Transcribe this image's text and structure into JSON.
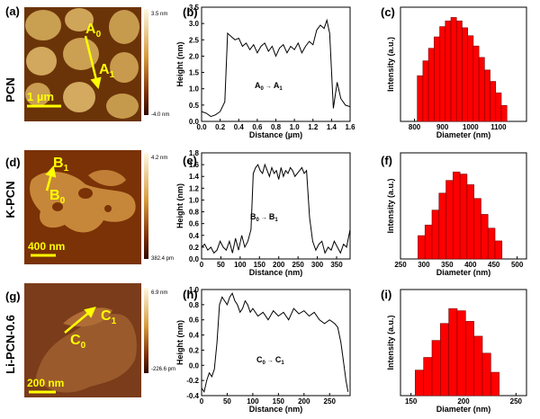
{
  "colors": {
    "bar": "#ff0000",
    "bar_edge": "#7a0000",
    "annotation": "#ffff00",
    "line": "#000000"
  },
  "rows": [
    {
      "row_label": "PCN",
      "afm": {
        "panel": "(a)",
        "scale_bar": "1 µm",
        "colorbar_max": "3.5 nm",
        "colorbar_min": "-4.0 nm",
        "start_base": "A",
        "start_sub": "0",
        "end_base": "A",
        "end_sub": "1"
      },
      "profile": {
        "panel": "(b)",
        "annotation": {
          "start_base": "A",
          "start_sub": "0",
          "arrow": "→",
          "end_base": "A",
          "end_sub": "1"
        }
      },
      "hist": {
        "panel": "(c)"
      }
    },
    {
      "row_label": "K-PCN",
      "afm": {
        "panel": "(d)",
        "scale_bar": "400 nm",
        "colorbar_max": "4.2 nm",
        "colorbar_min": "382.4 pm",
        "start_base": "B",
        "start_sub": "0",
        "end_base": "B",
        "end_sub": "1"
      },
      "profile": {
        "panel": "(e)",
        "annotation": {
          "start_base": "B",
          "start_sub": "0",
          "arrow": "→",
          "end_base": "B",
          "end_sub": "1"
        }
      },
      "hist": {
        "panel": "(f)"
      }
    },
    {
      "row_label": "Li-PCN-0.6",
      "afm": {
        "panel": "(g)",
        "scale_bar": "200 nm",
        "colorbar_max": "6.9 nm",
        "colorbar_min": "-226.6 pm",
        "start_base": "C",
        "start_sub": "0",
        "end_base": "C",
        "end_sub": "1"
      },
      "profile": {
        "panel": "(h)",
        "annotation": {
          "start_base": "C",
          "start_sub": "0",
          "arrow": "→",
          "end_base": "C",
          "end_sub": "1"
        }
      },
      "hist": {
        "panel": "(i)"
      }
    }
  ],
  "chart_data": [
    {
      "id": "b",
      "type": "line",
      "xlabel": "Distance (µm)",
      "ylabel": "Height (nm)",
      "xlim": [
        0,
        1.6
      ],
      "ylim": [
        0,
        3.5
      ],
      "xticks": [
        "0.0",
        "0.2",
        "0.4",
        "0.6",
        "0.8",
        "1.0",
        "1.2",
        "1.4",
        "1.6"
      ],
      "yticks": [
        "0.0",
        "0.5",
        "1.0",
        "1.5",
        "2.0",
        "2.5",
        "3.0",
        "3.5"
      ],
      "x": [
        0,
        0.05,
        0.1,
        0.15,
        0.2,
        0.25,
        0.28,
        0.32,
        0.36,
        0.4,
        0.44,
        0.48,
        0.52,
        0.56,
        0.6,
        0.64,
        0.68,
        0.72,
        0.76,
        0.8,
        0.84,
        0.88,
        0.92,
        0.96,
        1.0,
        1.04,
        1.08,
        1.12,
        1.16,
        1.2,
        1.24,
        1.28,
        1.32,
        1.35,
        1.38,
        1.42,
        1.46,
        1.5,
        1.55,
        1.6
      ],
      "y": [
        0.3,
        0.25,
        0.15,
        0.2,
        0.3,
        0.6,
        2.7,
        2.6,
        2.5,
        2.55,
        2.3,
        2.4,
        2.2,
        2.35,
        2.1,
        2.3,
        2.4,
        2.15,
        2.3,
        2.0,
        2.25,
        2.35,
        2.1,
        2.3,
        2.2,
        2.4,
        2.1,
        2.3,
        2.45,
        2.35,
        2.8,
        2.95,
        2.85,
        3.1,
        2.7,
        0.4,
        1.2,
        0.7,
        0.5,
        0.45
      ]
    },
    {
      "id": "c",
      "type": "bar",
      "xlabel": "Diameter (nm)",
      "ylabel": "Intensity (a.u.)",
      "xlim": [
        750,
        1200
      ],
      "xticks": [
        "800",
        "900",
        "1000",
        "1100"
      ],
      "categories": [
        820,
        840,
        860,
        880,
        900,
        920,
        940,
        960,
        980,
        1000,
        1020,
        1040,
        1060,
        1080,
        1100,
        1120
      ],
      "values": [
        40,
        53,
        64,
        74,
        83,
        88,
        91,
        88,
        82,
        75,
        66,
        56,
        45,
        35,
        25,
        14
      ]
    },
    {
      "id": "e",
      "type": "line",
      "xlabel": "Distance (nm)",
      "ylabel": "Height (nm)",
      "xlim": [
        0,
        385
      ],
      "ylim": [
        0,
        1.8
      ],
      "xticks": [
        "0",
        "50",
        "100",
        "150",
        "200",
        "250",
        "300",
        "350"
      ],
      "yticks": [
        "0.0",
        "0.2",
        "0.4",
        "0.6",
        "0.8",
        "1.0",
        "1.2",
        "1.4",
        "1.6",
        "1.8"
      ],
      "x": [
        0,
        8,
        16,
        24,
        32,
        40,
        48,
        56,
        64,
        72,
        80,
        88,
        96,
        104,
        112,
        120,
        128,
        134,
        140,
        146,
        152,
        158,
        164,
        170,
        176,
        182,
        188,
        194,
        200,
        206,
        212,
        218,
        224,
        230,
        236,
        242,
        248,
        254,
        260,
        266,
        272,
        280,
        288,
        296,
        304,
        312,
        320,
        328,
        336,
        344,
        352,
        360,
        368,
        376,
        385
      ],
      "y": [
        0.2,
        0.25,
        0.15,
        0.2,
        0.1,
        0.15,
        0.3,
        0.2,
        0.15,
        0.3,
        0.1,
        0.35,
        0.15,
        0.4,
        0.2,
        0.3,
        0.5,
        1.45,
        1.55,
        1.6,
        1.5,
        1.45,
        1.6,
        1.5,
        1.4,
        1.55,
        1.45,
        1.5,
        1.35,
        1.55,
        1.4,
        1.5,
        1.45,
        1.55,
        1.5,
        1.4,
        1.45,
        1.5,
        1.55,
        1.45,
        1.5,
        0.7,
        0.3,
        0.15,
        0.25,
        0.3,
        0.1,
        0.2,
        0.15,
        0.3,
        0.2,
        0.1,
        0.25,
        0.2,
        0.5
      ]
    },
    {
      "id": "f",
      "type": "bar",
      "xlabel": "Diameter (nm)",
      "ylabel": "Intensity (a.u.)",
      "xlim": [
        250,
        520
      ],
      "xticks": [
        "250",
        "300",
        "350",
        "400",
        "450",
        "500"
      ],
      "categories": [
        295,
        310,
        325,
        340,
        355,
        370,
        385,
        400,
        415,
        430,
        445,
        460
      ],
      "values": [
        22,
        32,
        46,
        62,
        74,
        82,
        80,
        70,
        57,
        42,
        29,
        17
      ]
    },
    {
      "id": "h",
      "type": "line",
      "xlabel": "Distance (nm)",
      "ylabel": "Height (nm)",
      "xlim": [
        0,
        290
      ],
      "ylim": [
        -0.4,
        1.0
      ],
      "xticks": [
        "0",
        "50",
        "100",
        "150",
        "200",
        "250"
      ],
      "yticks": [
        "-0.4",
        "-0.2",
        "0.0",
        "0.2",
        "0.4",
        "0.6",
        "0.8",
        "1.0"
      ],
      "x": [
        0,
        5,
        10,
        15,
        20,
        25,
        30,
        35,
        40,
        45,
        50,
        55,
        60,
        65,
        70,
        75,
        80,
        85,
        90,
        95,
        100,
        110,
        120,
        130,
        140,
        150,
        160,
        170,
        180,
        190,
        200,
        210,
        220,
        230,
        240,
        250,
        260,
        266,
        272,
        278,
        282,
        286
      ],
      "y": [
        -0.3,
        -0.35,
        -0.2,
        -0.1,
        -0.15,
        -0.05,
        0.3,
        0.8,
        0.9,
        0.85,
        0.8,
        0.9,
        0.95,
        0.85,
        0.8,
        0.7,
        0.75,
        0.85,
        0.8,
        0.7,
        0.75,
        0.65,
        0.7,
        0.6,
        0.72,
        0.65,
        0.7,
        0.6,
        0.75,
        0.68,
        0.72,
        0.65,
        0.7,
        0.6,
        0.55,
        0.6,
        0.55,
        0.5,
        0.3,
        0.0,
        -0.2,
        -0.35
      ]
    },
    {
      "id": "i",
      "type": "bar",
      "xlabel": "Diameter (nm)",
      "ylabel": "Intensity (a.u.)",
      "xlim": [
        140,
        260
      ],
      "xticks": [
        "150",
        "200",
        "250"
      ],
      "categories": [
        158,
        166,
        174,
        182,
        190,
        198,
        206,
        214,
        222,
        230
      ],
      "values": [
        24,
        36,
        52,
        68,
        82,
        80,
        70,
        56,
        40,
        22
      ]
    }
  ]
}
